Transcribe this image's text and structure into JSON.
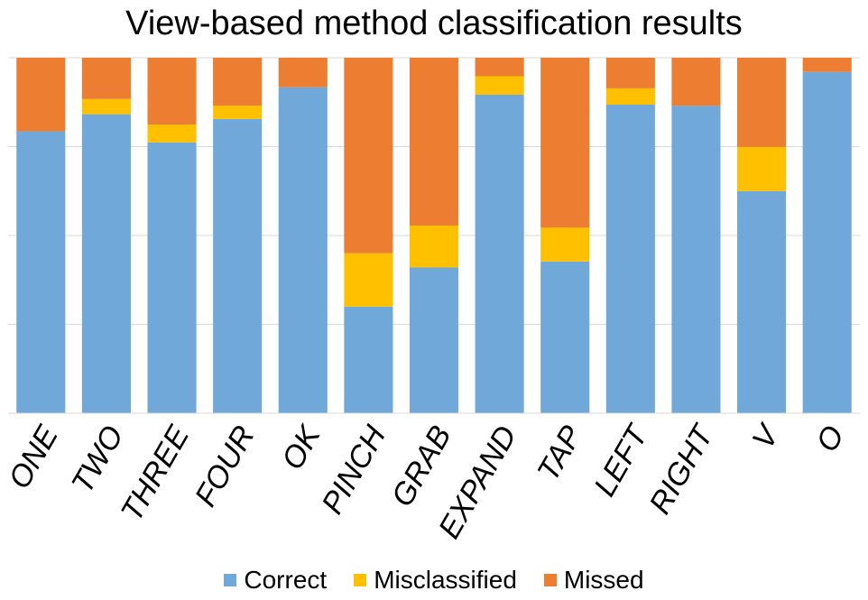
{
  "chart_data": {
    "type": "bar",
    "stacked": true,
    "title": "View-based method classification results",
    "categories": [
      "ONE",
      "TWO",
      "THREE",
      "FOUR",
      "OK",
      "PINCH",
      "GRAB",
      "EXPAND",
      "TAP",
      "LEFT",
      "RIGHT",
      "V",
      "O"
    ],
    "series": [
      {
        "name": "Correct",
        "color": "#70A8DA",
        "values": [
          79.3,
          84.1,
          76.2,
          82.8,
          91.7,
          30.0,
          41.0,
          89.6,
          42.7,
          86.8,
          86.5,
          62.5,
          96.0
        ]
      },
      {
        "name": "Misclassified",
        "color": "#FFC000",
        "values": [
          0.0,
          4.3,
          5.0,
          3.7,
          0.0,
          15.0,
          11.8,
          5.2,
          9.5,
          4.6,
          0.0,
          12.4,
          0.0
        ]
      },
      {
        "name": "Missed",
        "color": "#ED7D31",
        "values": [
          20.7,
          11.6,
          18.8,
          13.5,
          8.3,
          55.0,
          47.2,
          5.2,
          47.8,
          8.6,
          13.5,
          25.1,
          4.0
        ]
      }
    ],
    "ylim": [
      0,
      100
    ],
    "ygrid": [
      25,
      50,
      75,
      100
    ],
    "grid": true,
    "legend_position": "bottom"
  }
}
